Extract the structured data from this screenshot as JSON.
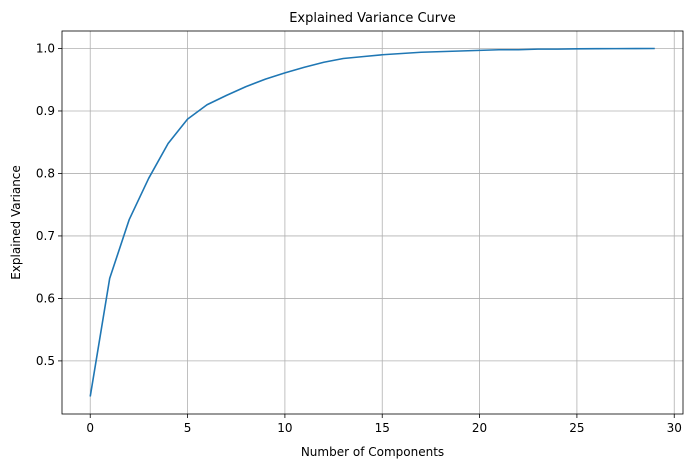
{
  "chart_data": {
    "type": "line",
    "title": "Explained Variance Curve",
    "xlabel": "Number of Components",
    "ylabel": "Explained Variance",
    "xlim": [
      -1.45,
      30.45
    ],
    "ylim": [
      0.415,
      1.028
    ],
    "x_ticks": [
      0,
      5,
      10,
      15,
      20,
      25,
      30
    ],
    "y_ticks": [
      0.5,
      0.6,
      0.7,
      0.8,
      0.9,
      1.0
    ],
    "x_tick_labels": [
      "0",
      "5",
      "10",
      "15",
      "20",
      "25",
      "30"
    ],
    "y_tick_labels": [
      "0.5",
      "0.6",
      "0.7",
      "0.8",
      "0.9",
      "1.0"
    ],
    "grid": true,
    "series": [
      {
        "name": "Explained Variance",
        "color": "#1f77b4",
        "x": [
          0,
          1,
          2,
          3,
          4,
          5,
          6,
          7,
          8,
          9,
          10,
          11,
          12,
          13,
          14,
          15,
          16,
          17,
          18,
          19,
          20,
          21,
          22,
          23,
          24,
          25,
          26,
          27,
          28,
          29
        ],
        "values": [
          0.443,
          0.632,
          0.726,
          0.792,
          0.848,
          0.887,
          0.91,
          0.925,
          0.939,
          0.951,
          0.961,
          0.97,
          0.978,
          0.984,
          0.987,
          0.99,
          0.992,
          0.994,
          0.995,
          0.996,
          0.997,
          0.998,
          0.998,
          0.999,
          0.999,
          0.9995,
          0.9997,
          0.9998,
          0.9999,
          1.0
        ]
      }
    ]
  }
}
